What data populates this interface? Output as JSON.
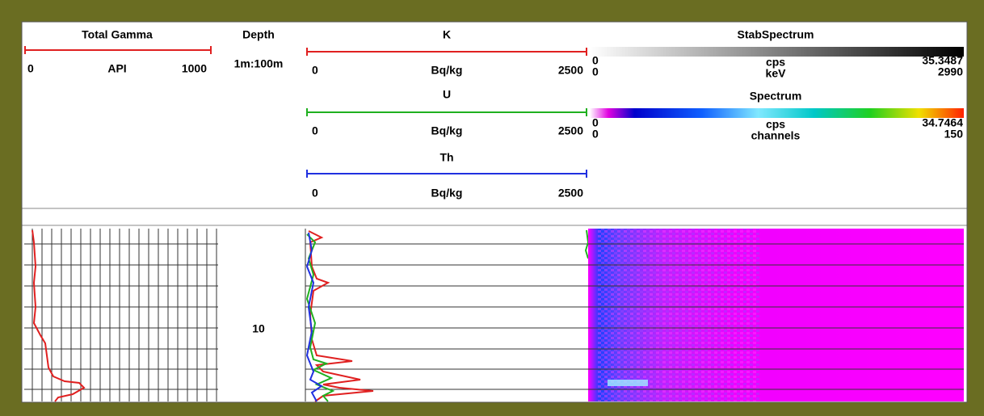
{
  "tracks": {
    "total_gamma": {
      "title": "Total Gamma",
      "min": "0",
      "unit": "API",
      "max": "1000"
    },
    "depth": {
      "title": "Depth",
      "scale": "1m:100m",
      "label": "10"
    },
    "k": {
      "title": "K",
      "min": "0",
      "unit": "Bq/kg",
      "max": "2500"
    },
    "u": {
      "title": "U",
      "min": "0",
      "unit": "Bq/kg",
      "max": "2500"
    },
    "th": {
      "title": "Th",
      "min": "0",
      "unit": "Bq/kg",
      "max": "2500"
    },
    "stab_spectrum": {
      "title": "StabSpectrum",
      "y_min": "0",
      "y_unit": "cps",
      "y_max": "35.3487",
      "x_min": "0",
      "x_unit": "keV",
      "x_max": "2990"
    },
    "spectrum": {
      "title": "Spectrum",
      "y_min": "0",
      "y_unit": "cps",
      "y_max": "34.7464",
      "x_min": "0",
      "x_unit": "channels",
      "x_max": "150"
    }
  }
}
